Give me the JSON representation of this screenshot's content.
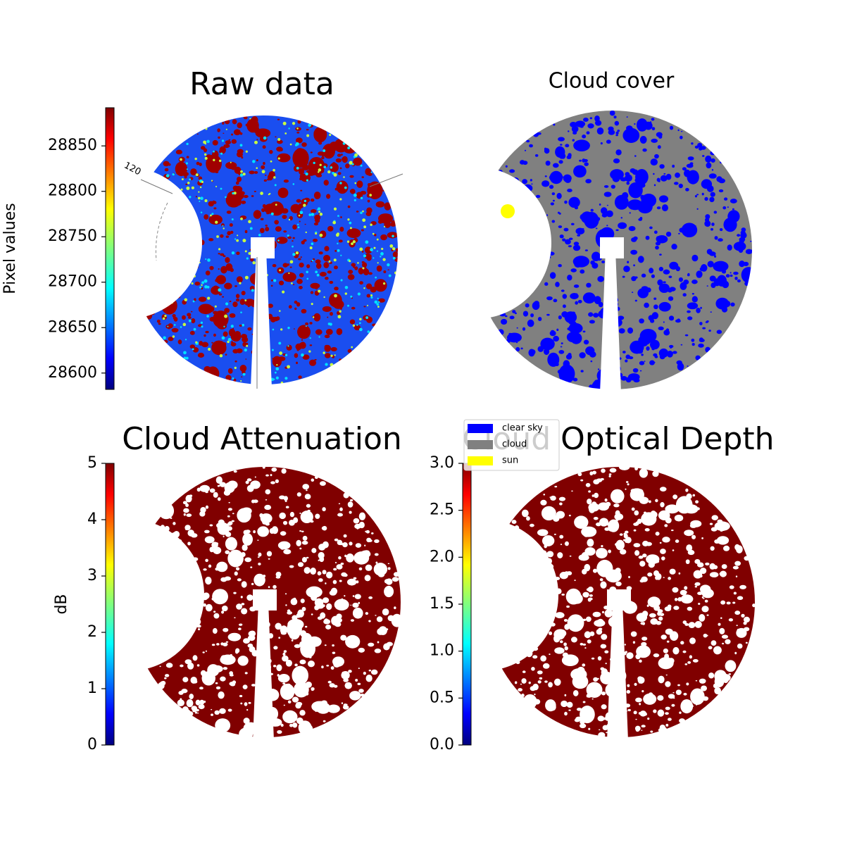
{
  "chart_data": [
    {
      "type": "image",
      "title": "Raw data",
      "colorbar_label": "Pixel values",
      "colormap": "jet",
      "clim": [
        28582,
        28892
      ],
      "cticks": [
        28600,
        28650,
        28700,
        28750,
        28800,
        28850
      ],
      "annotation": "120"
    },
    {
      "type": "image",
      "title": "Cloud cover",
      "legend": [
        {
          "name": "clear sky",
          "color": "#0000ff"
        },
        {
          "name": "cloud",
          "color": "#808080"
        },
        {
          "name": "sun",
          "color": "#ffff00"
        }
      ]
    },
    {
      "type": "image",
      "title": "Cloud Attenuation",
      "colorbar_label": "dB",
      "colormap": "jet",
      "clim": [
        0,
        5
      ],
      "cticks": [
        0,
        1,
        2,
        3,
        4,
        5
      ]
    },
    {
      "type": "image",
      "title": "Cloud Optical Depth",
      "colormap": "jet",
      "clim": [
        0,
        3
      ],
      "cticks": [
        {
          "value": 0,
          "label": "0.0"
        },
        {
          "value": 0.5,
          "label": "0.5"
        },
        {
          "value": 1,
          "label": "1.0"
        },
        {
          "value": 1.5,
          "label": "1.5"
        },
        {
          "value": 2,
          "label": "2.0"
        },
        {
          "value": 2.5,
          "label": "2.5"
        },
        {
          "value": 3,
          "label": "3.0"
        }
      ]
    }
  ]
}
